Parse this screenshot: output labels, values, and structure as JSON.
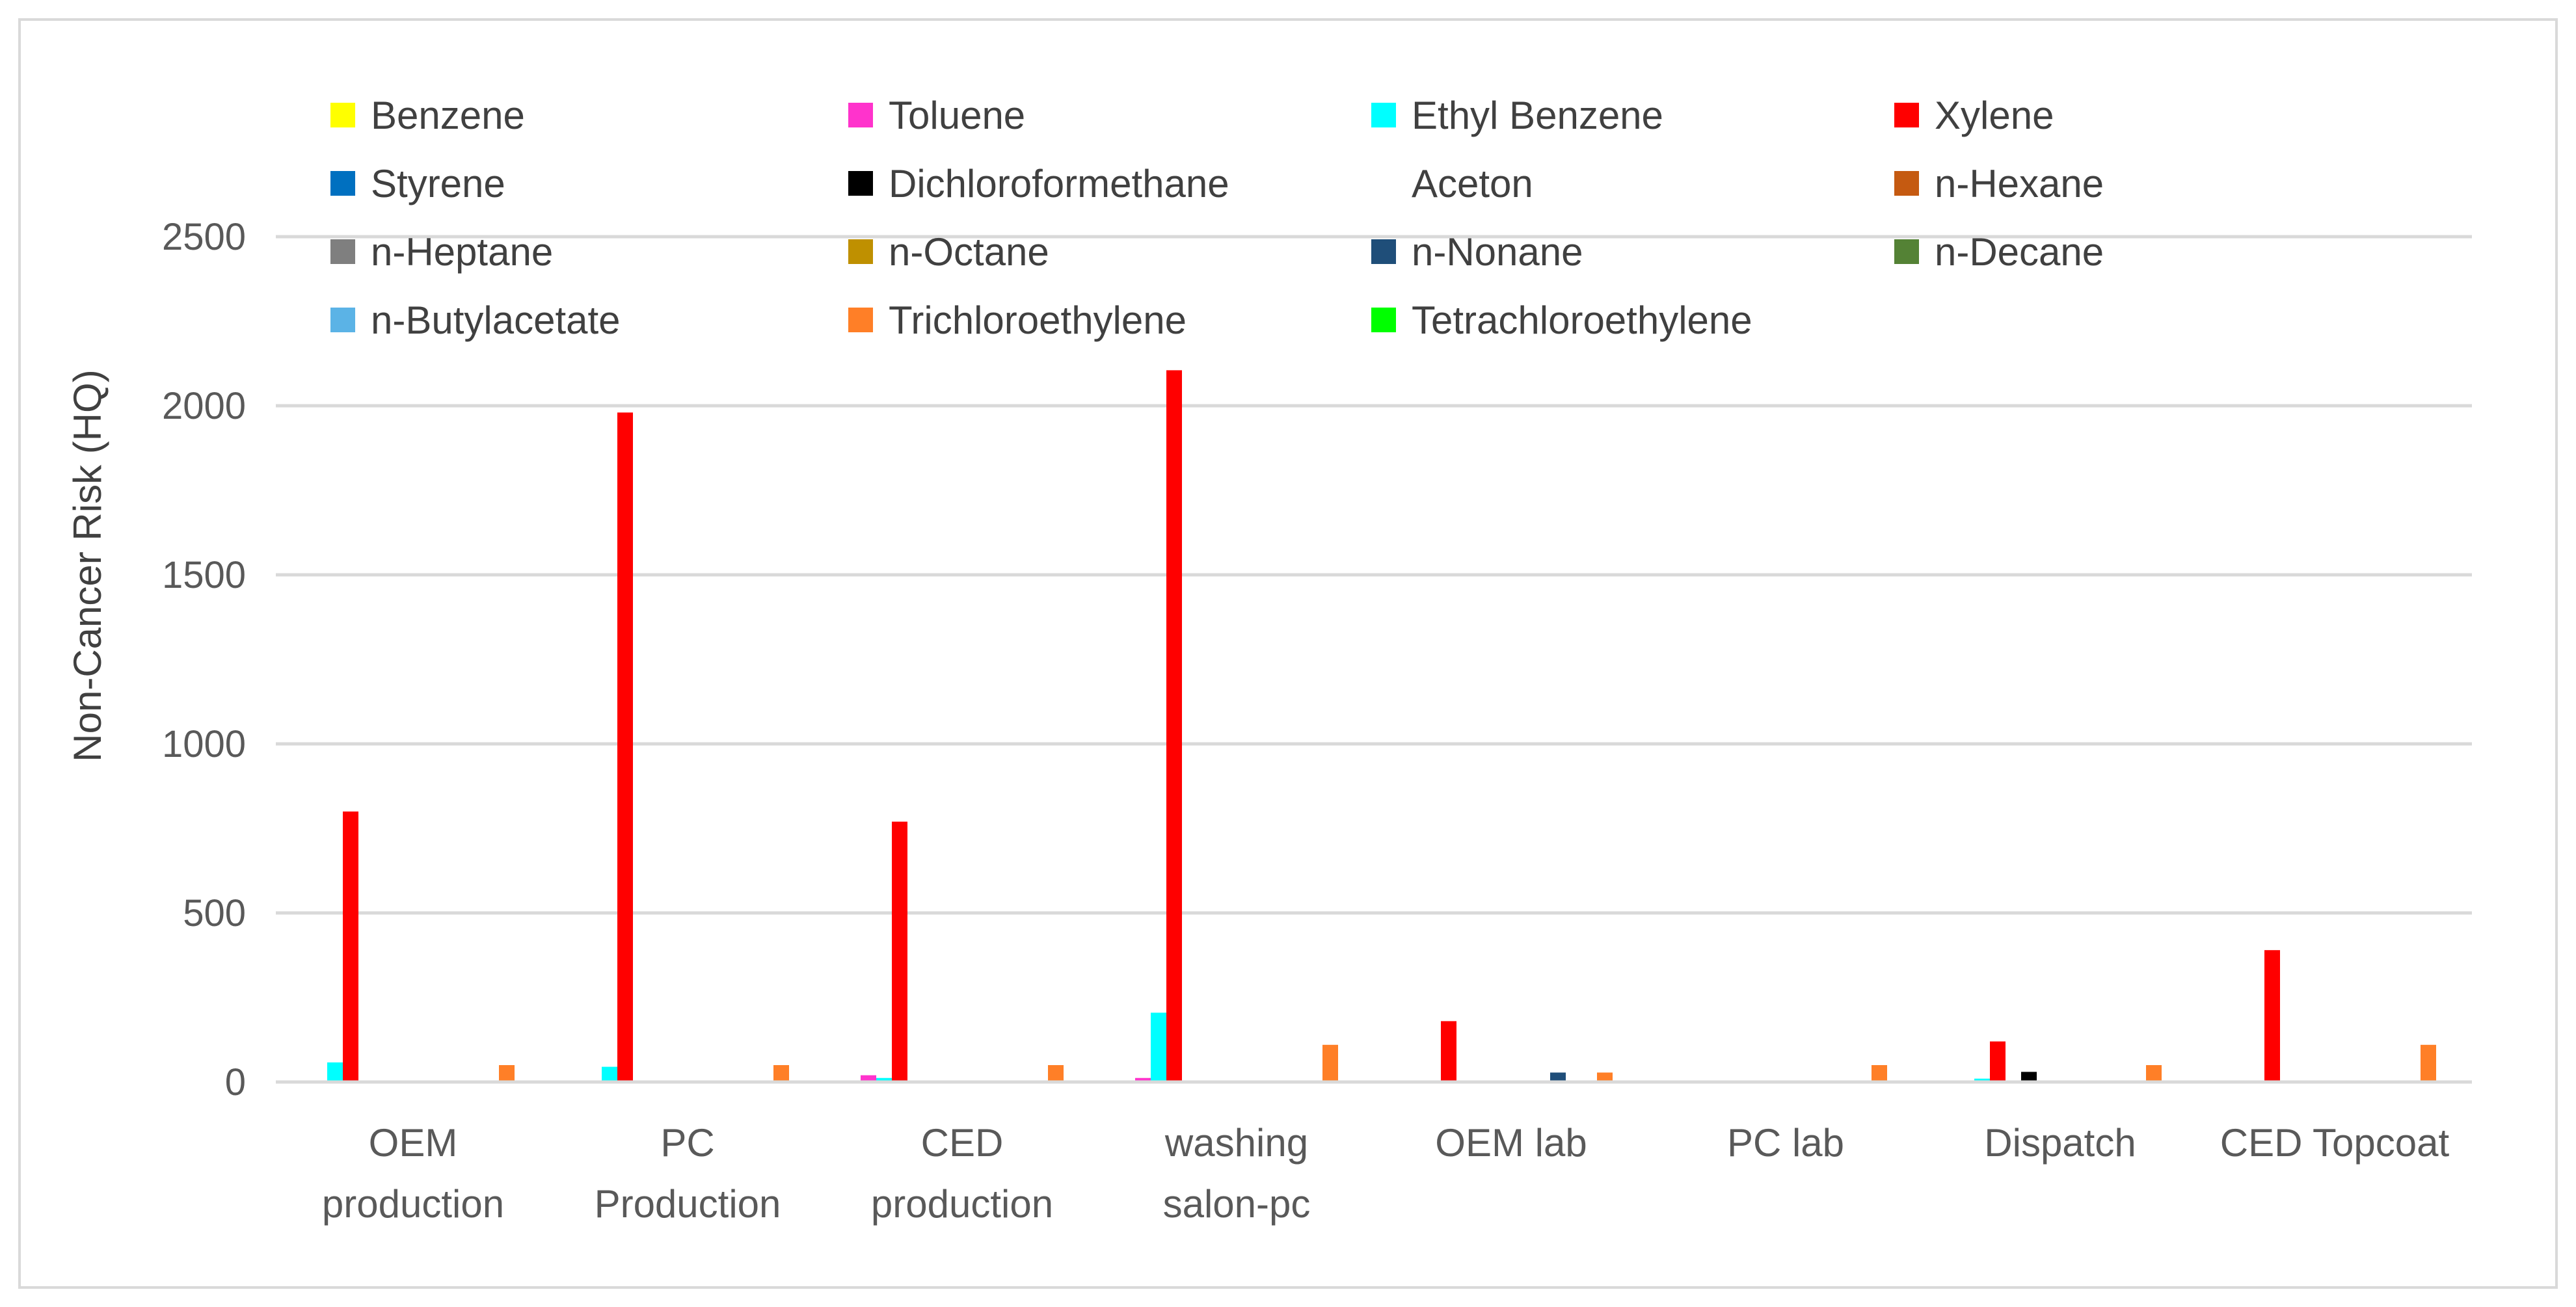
{
  "chart_data": {
    "type": "bar",
    "title": "",
    "xlabel": "",
    "ylabel": "Non-Cancer Risk (HQ)",
    "ylim": [
      0,
      2500
    ],
    "yticks": [
      0,
      500,
      1000,
      1500,
      2000,
      2500
    ],
    "grid": true,
    "legend_position": "top",
    "categories": [
      [
        "OEM",
        "production"
      ],
      [
        "PC",
        "Production"
      ],
      [
        "CED",
        "production"
      ],
      [
        "washing",
        "salon-pc"
      ],
      [
        "OEM lab"
      ],
      [
        "PC lab"
      ],
      [
        "Dispatch"
      ],
      [
        "CED Topcoat"
      ]
    ],
    "series": [
      {
        "name": "Benzene",
        "color": "#FFFF00",
        "values": [
          0,
          0,
          0,
          0,
          0,
          0,
          0,
          0
        ]
      },
      {
        "name": "Toluene",
        "color": "#FF33CC",
        "values": [
          0,
          0,
          20,
          12,
          0,
          0,
          0,
          0
        ]
      },
      {
        "name": "Ethyl Benzene",
        "color": "#00FFFF",
        "values": [
          58,
          45,
          12,
          205,
          0,
          0,
          10,
          0
        ]
      },
      {
        "name": "Xylene",
        "color": "#FF0000",
        "values": [
          800,
          1980,
          770,
          2105,
          180,
          0,
          120,
          390
        ]
      },
      {
        "name": "Styrene",
        "color": "#0070C0",
        "values": [
          0,
          0,
          0,
          0,
          0,
          0,
          0,
          0
        ]
      },
      {
        "name": "Dichloroformethane",
        "color": "#000000",
        "values": [
          0,
          0,
          0,
          0,
          0,
          0,
          30,
          0
        ]
      },
      {
        "name": "Aceton",
        "color": "#FFFFFF",
        "values": [
          0,
          0,
          0,
          0,
          0,
          0,
          0,
          0
        ]
      },
      {
        "name": "n-Hexane",
        "color": "#C55A11",
        "values": [
          0,
          0,
          0,
          0,
          0,
          0,
          0,
          0
        ]
      },
      {
        "name": "n-Heptane",
        "color": "#7F7F7F",
        "values": [
          0,
          0,
          0,
          0,
          0,
          0,
          0,
          0
        ]
      },
      {
        "name": "n-Octane",
        "color": "#BF9000",
        "values": [
          0,
          0,
          0,
          0,
          0,
          0,
          0,
          0
        ]
      },
      {
        "name": "n-Nonane",
        "color": "#1F4E79",
        "values": [
          0,
          0,
          0,
          0,
          28,
          0,
          0,
          0
        ]
      },
      {
        "name": "n-Decane",
        "color": "#548235",
        "values": [
          0,
          0,
          0,
          0,
          0,
          0,
          0,
          0
        ]
      },
      {
        "name": "n-Butylacetate",
        "color": "#5BB3E6",
        "values": [
          0,
          0,
          0,
          0,
          0,
          0,
          0,
          0
        ]
      },
      {
        "name": "Trichloroethylene",
        "color": "#FF7F27",
        "values": [
          50,
          50,
          50,
          110,
          28,
          50,
          50,
          110
        ]
      },
      {
        "name": "Tetrachloroethylene",
        "color": "#00FF00",
        "values": [
          0,
          0,
          0,
          0,
          0,
          0,
          0,
          0
        ]
      }
    ]
  }
}
